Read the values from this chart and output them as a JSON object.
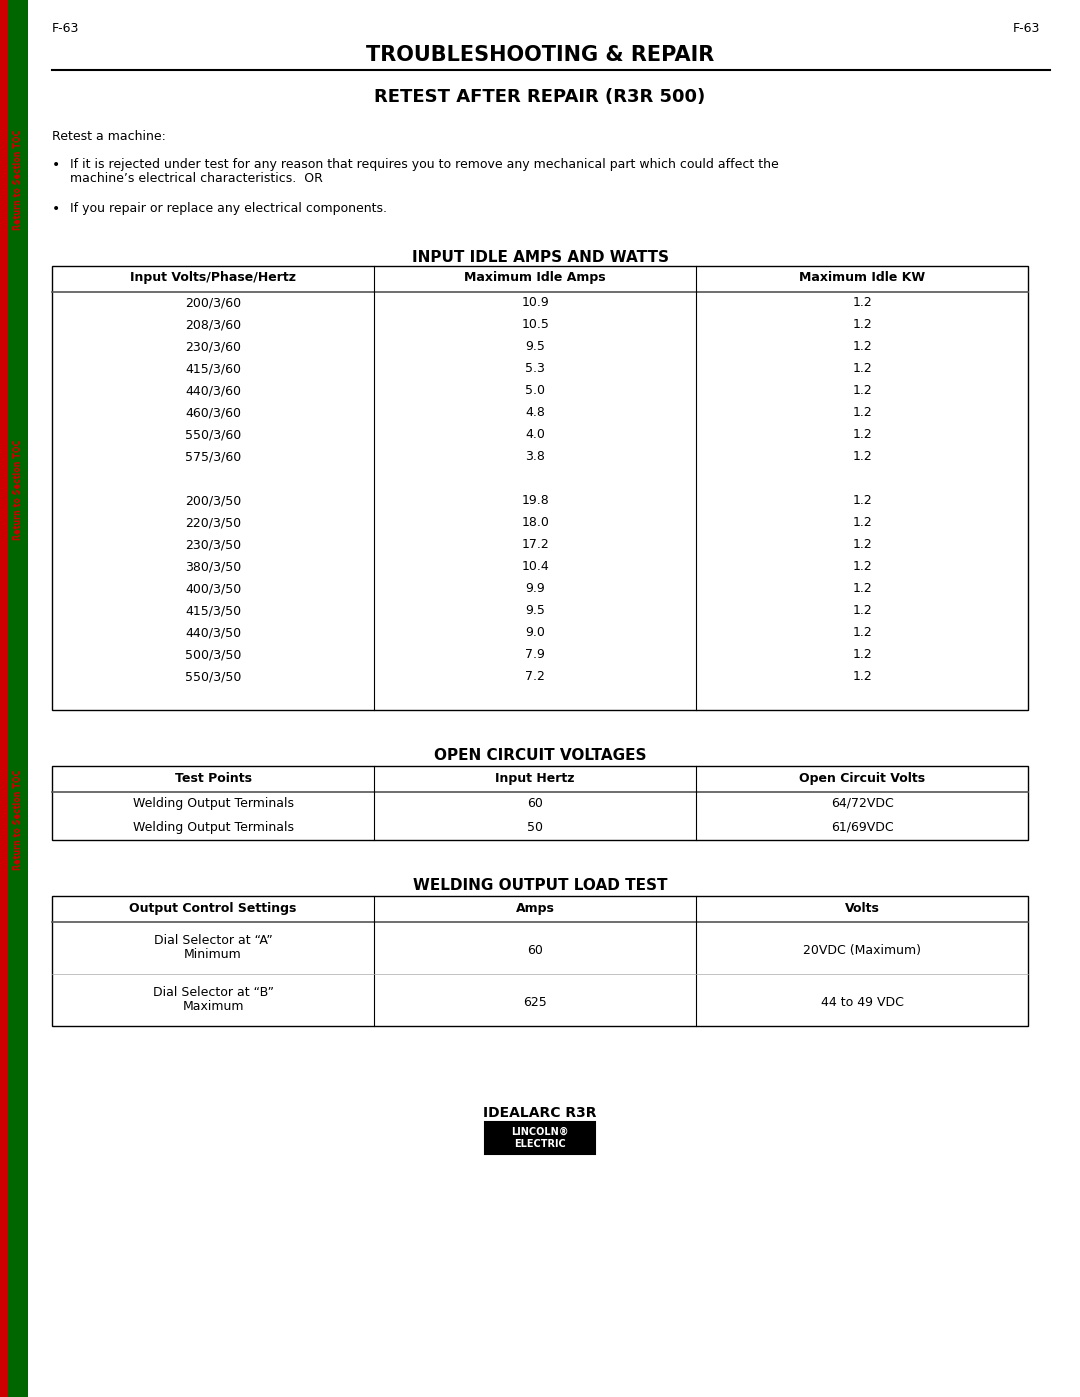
{
  "page_label": "F-63",
  "main_title": "TROUBLESHOOTING & REPAIR",
  "section_title": "RETEST AFTER REPAIR (R3R 500)",
  "intro_text": "Retest a machine:",
  "bullet1_line1": "If it is rejected under test for any reason that requires you to remove any mechanical part which could affect the",
  "bullet1_line2": "machine’s electrical characteristics.  OR",
  "bullet2": "If you repair or replace any electrical components.",
  "table1_title": "INPUT IDLE AMPS AND WATTS",
  "table1_headers": [
    "Input Volts/Phase/Hertz",
    "Maximum Idle Amps",
    "Maximum Idle KW"
  ],
  "table1_rows": [
    [
      "200/3/60",
      "10.9",
      "1.2"
    ],
    [
      "208/3/60",
      "10.5",
      "1.2"
    ],
    [
      "230/3/60",
      "9.5",
      "1.2"
    ],
    [
      "415/3/60",
      "5.3",
      "1.2"
    ],
    [
      "440/3/60",
      "5.0",
      "1.2"
    ],
    [
      "460/3/60",
      "4.8",
      "1.2"
    ],
    [
      "550/3/60",
      "4.0",
      "1.2"
    ],
    [
      "575/3/60",
      "3.8",
      "1.2"
    ],
    [
      "",
      "",
      ""
    ],
    [
      "200/3/50",
      "19.8",
      "1.2"
    ],
    [
      "220/3/50",
      "18.0",
      "1.2"
    ],
    [
      "230/3/50",
      "17.2",
      "1.2"
    ],
    [
      "380/3/50",
      "10.4",
      "1.2"
    ],
    [
      "400/3/50",
      "9.9",
      "1.2"
    ],
    [
      "415/3/50",
      "9.5",
      "1.2"
    ],
    [
      "440/3/50",
      "9.0",
      "1.2"
    ],
    [
      "500/3/50",
      "7.9",
      "1.2"
    ],
    [
      "550/3/50",
      "7.2",
      "1.2"
    ]
  ],
  "table2_title": "OPEN CIRCUIT VOLTAGES",
  "table2_headers": [
    "Test Points",
    "Input Hertz",
    "Open Circuit Volts"
  ],
  "table2_rows": [
    [
      "Welding Output Terminals",
      "60",
      "64/72VDC"
    ],
    [
      "Welding Output Terminals",
      "50",
      "61/69VDC"
    ]
  ],
  "table3_title": "WELDING OUTPUT LOAD TEST",
  "table3_headers": [
    "Output Control Settings",
    "Amps",
    "Volts"
  ],
  "table3_rows": [
    [
      "Dial Selector at “A”\nMinimum",
      "60",
      "20VDC (Maximum)"
    ],
    [
      "Dial Selector at “B”\nMaximum",
      "625",
      "44 to 49 VDC"
    ]
  ],
  "footer_text": "IDEALARC R3R",
  "bg_color": "#ffffff",
  "sidebar_green": "#006600",
  "sidebar_red": "#cc0000",
  "col_splits": [
    0.33,
    0.66
  ]
}
